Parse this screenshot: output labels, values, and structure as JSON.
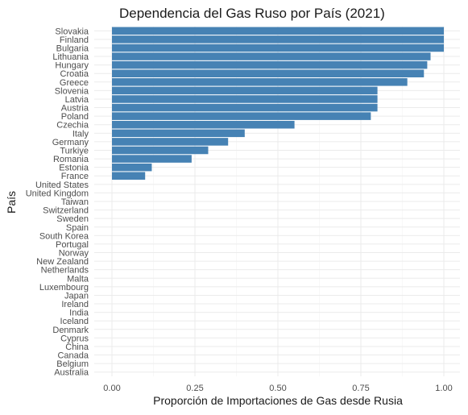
{
  "chart_data": {
    "type": "bar",
    "orientation": "horizontal",
    "title": "Dependencia del Gas Ruso por País (2021)",
    "xlabel": "Proporción de Importaciones de Gas desde Rusia",
    "ylabel": "País",
    "xlim": [
      0,
      1
    ],
    "xticks": [
      "0.00",
      "0.25",
      "0.50",
      "0.75",
      "1.00"
    ],
    "grid": true,
    "bar_color": "#4682B4",
    "categories": [
      "Slovakia",
      "Finland",
      "Bulgaria",
      "Lithuania",
      "Hungary",
      "Croatia",
      "Greece",
      "Slovenia",
      "Latvia",
      "Austria",
      "Poland",
      "Czechia",
      "Italy",
      "Germany",
      "Turkiye",
      "Romania",
      "Estonia",
      "France",
      "United States",
      "United Kingdom",
      "Taiwan",
      "Switzerland",
      "Sweden",
      "Spain",
      "South Korea",
      "Portugal",
      "Norway",
      "New Zealand",
      "Netherlands",
      "Malta",
      "Luxembourg",
      "Japan",
      "Ireland",
      "India",
      "Iceland",
      "Denmark",
      "Cyprus",
      "China",
      "Canada",
      "Belgium",
      "Australia"
    ],
    "values": [
      1.0,
      1.0,
      1.0,
      0.96,
      0.95,
      0.94,
      0.89,
      0.8,
      0.8,
      0.8,
      0.78,
      0.55,
      0.4,
      0.35,
      0.29,
      0.24,
      0.12,
      0.1,
      0,
      0,
      0,
      0,
      0,
      0,
      0,
      0,
      0,
      0,
      0,
      0,
      0,
      0,
      0,
      0,
      0,
      0,
      0,
      0,
      0,
      0,
      0
    ]
  }
}
